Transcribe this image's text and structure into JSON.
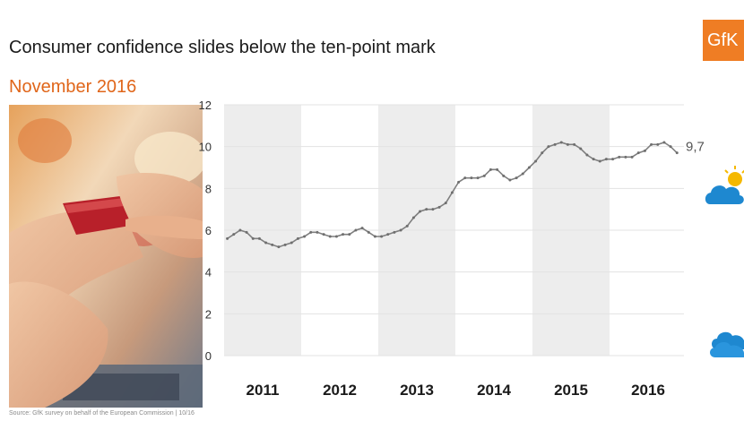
{
  "header": {
    "title": "Consumer confidence slides below the ten-point mark",
    "subtitle": "November 2016",
    "logo_text": "GfK"
  },
  "footer": {
    "source": "Source: GfK survey on behalf of the European Commission  | 10/16"
  },
  "colors": {
    "title": "#1a1a1a",
    "subtitle": "#e0661a",
    "logo": "#ef7d24",
    "line": "#7f7f7f",
    "band": "#ededed",
    "cloud": "#1e88d0",
    "sun": "#f5b800"
  },
  "icons": [
    "partly-sunny-icon",
    "cloudy-icon"
  ],
  "chart_data": {
    "type": "line",
    "title": "",
    "xlabel": "",
    "ylabel": "",
    "ylim": [
      0,
      12
    ],
    "yticks": [
      "0",
      "2",
      "4",
      "6",
      "8",
      "10",
      "12"
    ],
    "year_labels": [
      "2011",
      "2012",
      "2013",
      "2014",
      "2015",
      "2016"
    ],
    "shaded_years": [
      "2011",
      "2013",
      "2015"
    ],
    "grid": "horizontal",
    "points_per_year": 12,
    "end_label": "9,7",
    "series": [
      {
        "values": [
          5.6,
          5.8,
          6.0,
          5.9,
          5.6,
          5.6,
          5.4,
          5.3,
          5.2,
          5.3,
          5.4,
          5.6,
          5.7,
          5.9,
          5.9,
          5.8,
          5.7,
          5.7,
          5.8,
          5.8,
          6.0,
          6.1,
          5.9,
          5.7,
          5.7,
          5.8,
          5.9,
          6.0,
          6.2,
          6.6,
          6.9,
          7.0,
          7.0,
          7.1,
          7.3,
          7.8,
          8.3,
          8.5,
          8.5,
          8.5,
          8.6,
          8.9,
          8.9,
          8.6,
          8.4,
          8.5,
          8.7,
          9.0,
          9.3,
          9.7,
          10.0,
          10.1,
          10.2,
          10.1,
          10.1,
          9.9,
          9.6,
          9.4,
          9.3,
          9.4,
          9.4,
          9.5,
          9.5,
          9.5,
          9.7,
          9.8,
          10.1,
          10.1,
          10.2,
          10.0,
          9.7
        ]
      }
    ]
  }
}
